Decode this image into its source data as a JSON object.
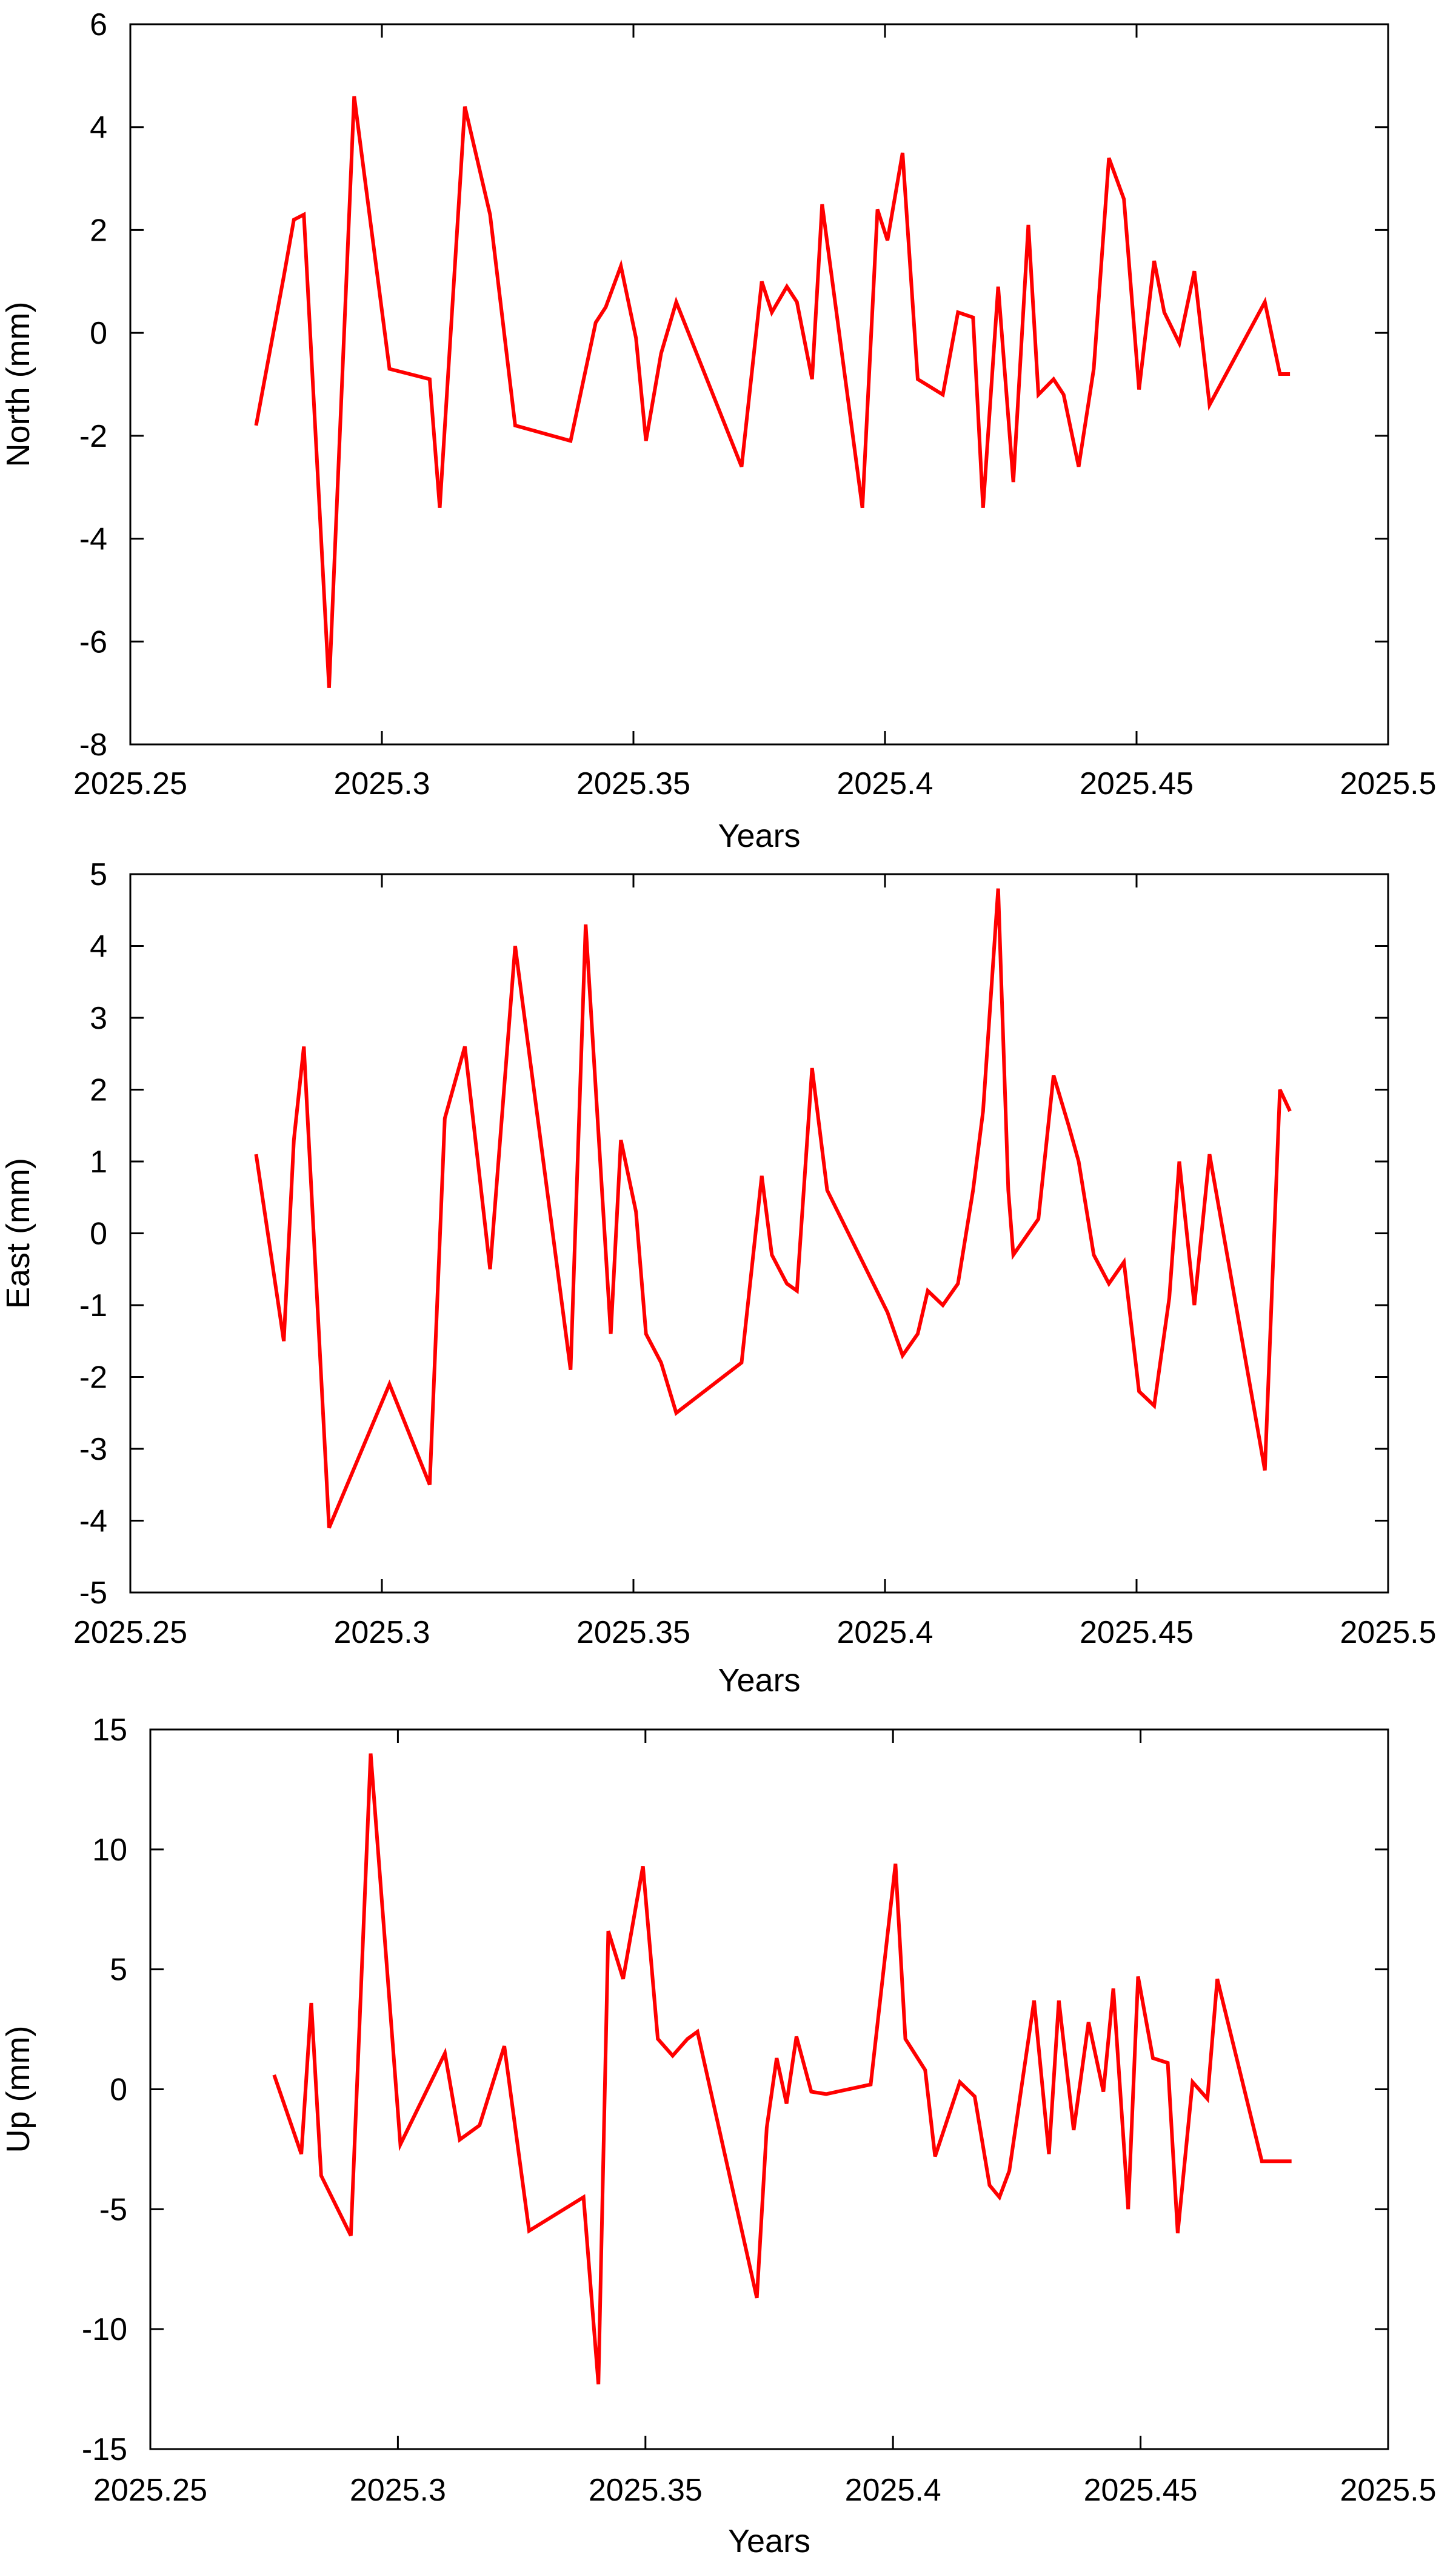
{
  "chart_data": [
    {
      "type": "line",
      "xlabel": "Years",
      "ylabel": "North (mm)",
      "xlim": [
        2025.25,
        2025.5
      ],
      "ylim": [
        -8,
        6
      ],
      "xticks": [
        "2025.25",
        "2025.3",
        "2025.35",
        "2025.4",
        "2025.45",
        "2025.5"
      ],
      "yticks": [
        "-8",
        "-6",
        "-4",
        "-2",
        "0",
        "2",
        "4",
        "6"
      ],
      "grid": false,
      "series": [
        {
          "color": "#ff0000",
          "x": [
            2025.275,
            2025.2805,
            2025.2825,
            2025.2845,
            2025.2895,
            2025.2945,
            2025.3015,
            2025.3095,
            2025.3115,
            2025.3165,
            2025.3215,
            2025.3265,
            2025.3375,
            2025.3425,
            2025.3445,
            2025.3475,
            2025.3505,
            2025.3525,
            2025.3555,
            2025.3585,
            2025.3715,
            2025.3755,
            2025.3775,
            2025.3805,
            2025.3825,
            2025.3855,
            2025.3875,
            2025.3955,
            2025.3985,
            2025.4005,
            2025.4035,
            2025.4065,
            2025.4115,
            2025.4145,
            2025.4175,
            2025.4195,
            2025.4225,
            2025.4255,
            2025.4285,
            2025.4305,
            2025.4335,
            2025.4355,
            2025.4385,
            2025.4415,
            2025.4445,
            2025.4475,
            2025.4505,
            2025.4535,
            2025.4555,
            2025.4585,
            2025.4615,
            2025.4645,
            2025.4755,
            2025.4785,
            2025.4805
          ],
          "y": [
            -1.8,
            1.1,
            2.2,
            2.3,
            -6.9,
            4.6,
            -0.7,
            -0.9,
            -3.4,
            4.4,
            2.3,
            -1.8,
            -2.1,
            0.2,
            0.5,
            1.3,
            -0.1,
            -2.1,
            -0.4,
            0.6,
            -2.6,
            1.0,
            0.4,
            0.9,
            0.6,
            -0.9,
            2.5,
            -3.4,
            2.4,
            1.8,
            3.5,
            -0.9,
            -1.2,
            0.4,
            0.3,
            -3.4,
            0.9,
            -2.9,
            2.1,
            -1.2,
            -0.9,
            -1.2,
            -2.6,
            -0.7,
            3.4,
            2.6,
            -1.1,
            1.4,
            0.4,
            -0.2,
            1.2,
            -1.4,
            0.6,
            -0.8,
            -0.8
          ]
        }
      ]
    },
    {
      "type": "line",
      "xlabel": "Years",
      "ylabel": "East (mm)",
      "xlim": [
        2025.25,
        2025.5
      ],
      "ylim": [
        -5,
        5
      ],
      "xticks": [
        "2025.25",
        "2025.3",
        "2025.35",
        "2025.4",
        "2025.45",
        "2025.5"
      ],
      "yticks": [
        "-5",
        "-4",
        "-3",
        "-2",
        "-1",
        "0",
        "1",
        "2",
        "3",
        "4",
        "5"
      ],
      "grid": false,
      "series": [
        {
          "color": "#ff0000",
          "x": [
            2025.275,
            2025.2805,
            2025.2825,
            2025.2845,
            2025.2895,
            2025.3015,
            2025.3095,
            2025.3125,
            2025.3165,
            2025.3215,
            2025.3265,
            2025.3375,
            2025.3405,
            2025.3455,
            2025.3475,
            2025.3505,
            2025.3525,
            2025.3555,
            2025.3585,
            2025.3715,
            2025.3755,
            2025.3775,
            2025.3805,
            2025.3825,
            2025.3855,
            2025.3885,
            2025.4005,
            2025.4035,
            2025.4065,
            2025.4085,
            2025.4115,
            2025.4145,
            2025.4175,
            2025.4195,
            2025.4225,
            2025.4245,
            2025.4255,
            2025.4305,
            2025.4335,
            2025.4365,
            2025.4385,
            2025.4415,
            2025.4445,
            2025.4475,
            2025.4505,
            2025.4535,
            2025.4565,
            2025.4585,
            2025.4615,
            2025.4645,
            2025.4755,
            2025.4785,
            2025.4805
          ],
          "y": [
            1.1,
            -1.5,
            1.3,
            2.6,
            -4.1,
            -2.1,
            -3.5,
            1.6,
            2.6,
            -0.5,
            4.0,
            -1.9,
            4.3,
            -1.4,
            1.3,
            0.3,
            -1.4,
            -1.8,
            -2.5,
            -1.8,
            0.8,
            -0.3,
            -0.7,
            -0.8,
            2.3,
            0.6,
            -1.1,
            -1.7,
            -1.4,
            -0.8,
            -1.0,
            -0.7,
            0.6,
            1.7,
            4.8,
            0.6,
            -0.3,
            0.2,
            2.2,
            1.5,
            1.0,
            -0.3,
            -0.7,
            -0.4,
            -2.2,
            -2.4,
            -0.9,
            1.0,
            -1.0,
            1.1,
            -3.3,
            2.0,
            1.7
          ]
        }
      ]
    },
    {
      "type": "line",
      "xlabel": "Years",
      "ylabel": "Up (mm)",
      "xlim": [
        2025.25,
        2025.5
      ],
      "ylim": [
        -15,
        15
      ],
      "xticks": [
        "2025.25",
        "2025.3",
        "2025.35",
        "2025.4",
        "2025.45",
        "2025.5"
      ],
      "yticks": [
        "-15",
        "-10",
        "-5",
        "0",
        "5",
        "10",
        "15"
      ],
      "grid": false,
      "series": [
        {
          "color": "#ff0000",
          "x": [
            2025.275,
            2025.2805,
            2025.2825,
            2025.2845,
            2025.2905,
            2025.2945,
            2025.3005,
            2025.3095,
            2025.3125,
            2025.3165,
            2025.3215,
            2025.3265,
            2025.3375,
            2025.3405,
            2025.3425,
            2025.3455,
            2025.3495,
            2025.3525,
            2025.3555,
            2025.3585,
            2025.3605,
            2025.3725,
            2025.3745,
            2025.3765,
            2025.3785,
            2025.3805,
            2025.3835,
            2025.3865,
            2025.3955,
            2025.4005,
            2025.4025,
            2025.4065,
            2025.4085,
            2025.4135,
            2025.4165,
            2025.4195,
            2025.4215,
            2025.4235,
            2025.4285,
            2025.4315,
            2025.4335,
            2025.4365,
            2025.4395,
            2025.4425,
            2025.4445,
            2025.4475,
            2025.4495,
            2025.4525,
            2025.4555,
            2025.4575,
            2025.4605,
            2025.4635,
            2025.4655,
            2025.4745,
            2025.4785,
            2025.4805
          ],
          "y": [
            0.6,
            -2.7,
            3.6,
            -3.6,
            -6.1,
            14.0,
            -2.3,
            1.5,
            -2.1,
            -1.5,
            1.8,
            -5.9,
            -4.5,
            -12.3,
            6.6,
            4.6,
            9.3,
            2.1,
            1.4,
            2.1,
            2.4,
            -8.7,
            -1.6,
            1.3,
            -0.6,
            2.2,
            -0.1,
            -0.2,
            0.2,
            9.4,
            2.1,
            0.8,
            -2.8,
            0.3,
            -0.3,
            -4.0,
            -4.5,
            -3.4,
            3.7,
            -2.7,
            3.7,
            -1.7,
            2.8,
            -0.1,
            4.2,
            -5.0,
            4.7,
            1.3,
            1.1,
            -6.0,
            0.3,
            -0.4,
            4.6,
            -3.0,
            -3.0,
            -3.0
          ]
        }
      ]
    }
  ]
}
